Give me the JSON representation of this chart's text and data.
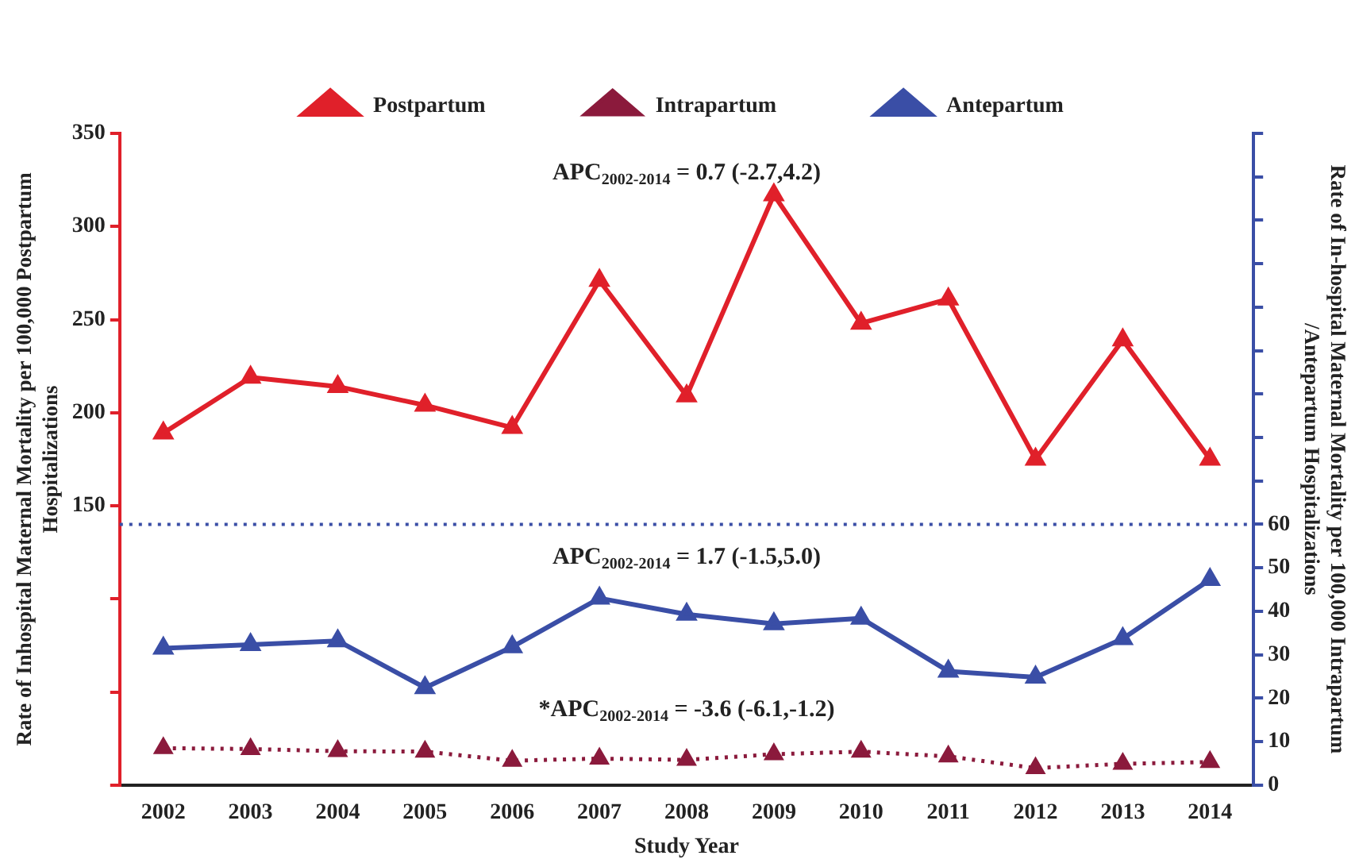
{
  "chart_data": {
    "type": "line",
    "xlabel": "Study Year",
    "ylabel": "Rate of Inhospital  Maternal Mortality per 100,000 Postpartum Hospitalizations",
    "y2label": "Rate of In-hospital  Maternal Mortality per 100,000 Intrapartum /Antepartum  Hospitalizations",
    "categories": [
      "2002",
      "2003",
      "2004",
      "2005",
      "2006",
      "2007",
      "2008",
      "2009",
      "2010",
      "2011",
      "2012",
      "2013",
      "2014"
    ],
    "series": [
      {
        "name": "Postpartum",
        "color": "#e0202a",
        "values": [
          189,
          219,
          214,
          204,
          192,
          271,
          209,
          317,
          248,
          261,
          175,
          239,
          175
        ]
      },
      {
        "name": "Intrapartum",
        "color": "#8b1a3c",
        "axis": "y2",
        "line_style": "dotted",
        "values": [
          8.5,
          8.3,
          7.8,
          7.7,
          5.6,
          6.1,
          5.8,
          7.1,
          7.7,
          6.6,
          3.9,
          4.9,
          5.3
        ]
      },
      {
        "name": "Antepartum",
        "color": "#3a4ea6",
        "axis": "y2",
        "values": [
          31.5,
          32.3,
          33.2,
          22.4,
          31.8,
          43,
          39.3,
          37.1,
          38.4,
          26.2,
          24.8,
          33.7,
          47.3
        ]
      }
    ],
    "ylim": [
      0,
      350
    ],
    "yticks": [
      {
        "value": 0,
        "label": null
      },
      {
        "value": 50,
        "label": null
      },
      {
        "value": 100,
        "label": null
      },
      150,
      200,
      250,
      300,
      350
    ],
    "y2lim": [
      0,
      150
    ],
    "y2ticks": [
      0,
      10,
      20,
      30,
      40,
      50,
      60,
      {
        "value": 70,
        "label": null
      },
      {
        "value": 80,
        "label": null
      },
      {
        "value": 90,
        "label": null
      },
      {
        "value": 100,
        "label": null
      },
      {
        "value": 110,
        "label": null
      },
      {
        "value": 120,
        "label": null
      },
      {
        "value": 130,
        "label": null
      },
      {
        "value": 140,
        "label": null
      },
      {
        "value": 150,
        "label": null
      }
    ],
    "ref_lines": [
      {
        "axis": "y2",
        "value": 60,
        "color": "#3a4ea6",
        "line_style": "dotted"
      }
    ],
    "annotations": [
      "APC$_{2002-2014}$ = 0.7 (-2.7,4.2)",
      "APC$_{2002-2014}$ = 1.7 (-1.5,5.0)",
      "*APC$_{2002-2014}$ = -3.6 (-6.1,-1.2)"
    ],
    "marker": "triangle",
    "grid": false,
    "legend": "top",
    "line_style": "solid"
  }
}
